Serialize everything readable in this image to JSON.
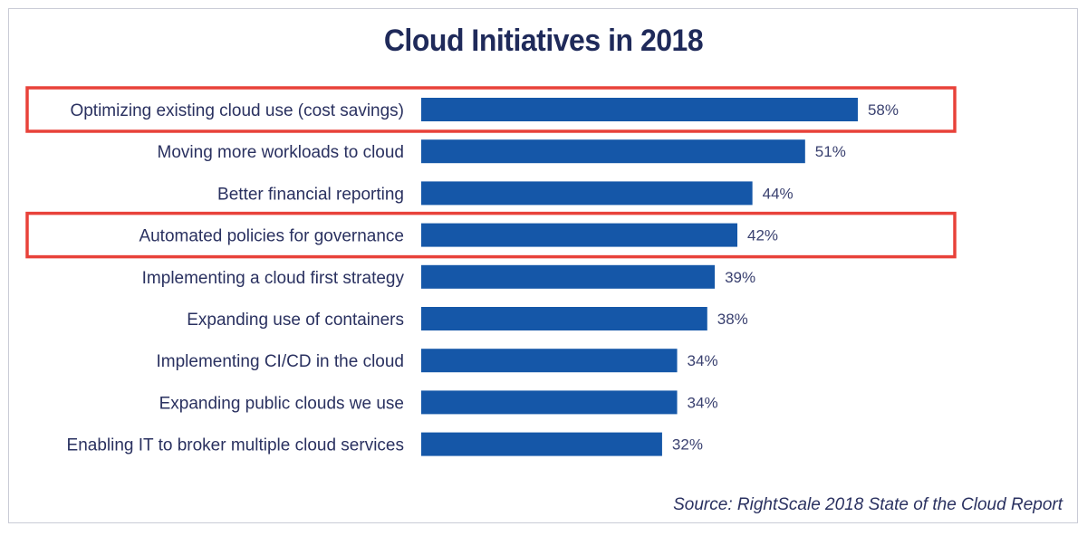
{
  "chart_data": {
    "type": "bar",
    "orientation": "horizontal",
    "title": "Cloud Initiatives in 2018",
    "categories": [
      "Optimizing existing cloud use (cost savings)",
      "Moving more workloads to cloud",
      "Better financial reporting",
      "Automated policies for governance",
      "Implementing a cloud first strategy",
      "Expanding use of containers",
      "Implementing CI/CD in the cloud",
      "Expanding public clouds we use",
      "Enabling IT to broker multiple cloud services"
    ],
    "values": [
      58,
      51,
      44,
      42,
      39,
      38,
      34,
      34,
      32
    ],
    "value_labels": [
      "58%",
      "51%",
      "44%",
      "42%",
      "39%",
      "38%",
      "34%",
      "34%",
      "32%"
    ],
    "unit": "%",
    "highlighted_categories": [
      "Optimizing existing cloud use (cost savings)",
      "Automated policies for governance"
    ],
    "xlabel": "",
    "ylabel": "",
    "xlim": [
      0,
      100
    ],
    "grid": false,
    "legend": "none",
    "colors": {
      "bar": "#1557a8",
      "highlight_box": "#e8423a",
      "text": "#2a3160",
      "title": "#1f2a5a"
    },
    "source": "Source: RightScale 2018 State of the Cloud Report"
  }
}
